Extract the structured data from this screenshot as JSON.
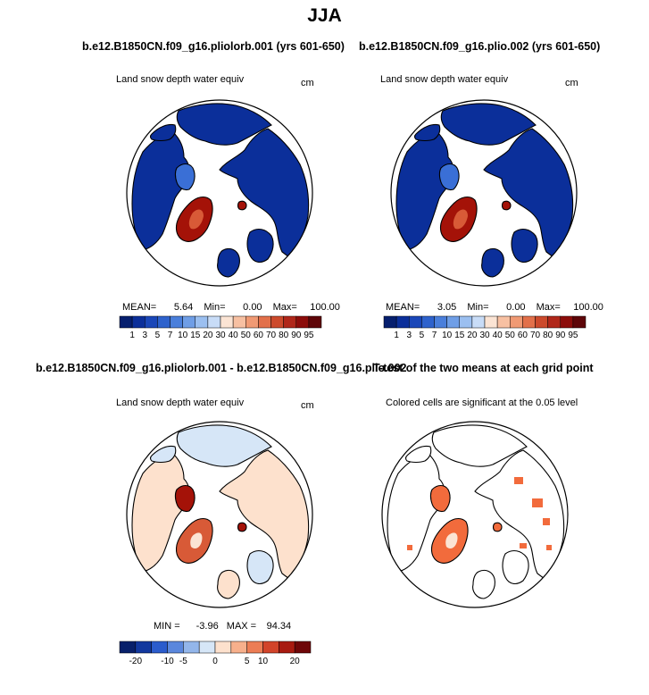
{
  "title": "JJA",
  "colors": {
    "land": "#ffffff",
    "snow_blue": "#0b2f9a",
    "snow_mid": "#3a6fd6",
    "snow_red": "#a41208",
    "snow_orange": "#d85a37",
    "diff_pos_small": "#fde1cd",
    "diff_neg_small": "#d6e6f7",
    "signif": "#f26b3c"
  },
  "panels": {
    "p1": {
      "title": "b.e12.B1850CN.f09_g16.pliolorb.001 (yrs 601-650)",
      "left_label": "Land snow depth water equiv",
      "right_label": "cm",
      "stats": {
        "mean_label": "MEAN=",
        "mean": "5.64",
        "min_label": "Min=",
        "min": "0.00",
        "max_label": "Max=",
        "max": "100.00"
      }
    },
    "p2": {
      "title": "b.e12.B1850CN.f09_g16.plio.002 (yrs 601-650)",
      "left_label": "Land snow depth water equiv",
      "right_label": "cm",
      "stats": {
        "mean_label": "MEAN=",
        "mean": "3.05",
        "min_label": "Min=",
        "min": "0.00",
        "max_label": "Max=",
        "max": "100.00"
      }
    },
    "p3": {
      "title": "b.e12.B1850CN.f09_g16.pliolorb.001 - b.e12.B1850CN.f09_g16.plio.002",
      "left_label": "Land snow depth water equiv",
      "right_label": "cm",
      "stats": {
        "min_label": "MIN =",
        "min": "-3.96",
        "max_label": "MAX =",
        "max": "94.34"
      }
    },
    "p4": {
      "title": "T-test of the two means at each grid point",
      "left_label": "Colored cells are significant at the 0.05 level"
    }
  },
  "chart_data": [
    {
      "type": "heatmap",
      "projection": "polar stereographic (north)",
      "title": "b.e12.B1850CN.f09_g16.pliolorb.001 (yrs 601-650)",
      "variable": "Land snow depth water equiv",
      "units": "cm",
      "colorbar": {
        "labels": [
          "1",
          "3",
          "5",
          "7",
          "10",
          "15",
          "20",
          "30",
          "40",
          "50",
          "60",
          "70",
          "80",
          "90",
          "95"
        ],
        "colors": [
          "#061f6e",
          "#0b2f9a",
          "#1a47b8",
          "#2e62cc",
          "#4a7fdb",
          "#6f9ee6",
          "#9bbff0",
          "#c8dcf7",
          "#fbe4d4",
          "#f7c0a2",
          "#f09a74",
          "#e2704a",
          "#cc4a2c",
          "#b0271a",
          "#8c0c0a",
          "#5e0508"
        ]
      },
      "stats": {
        "mean": 5.64,
        "min": 0.0,
        "max": 100.0
      }
    },
    {
      "type": "heatmap",
      "projection": "polar stereographic (north)",
      "title": "b.e12.B1850CN.f09_g16.plio.002 (yrs 601-650)",
      "variable": "Land snow depth water equiv",
      "units": "cm",
      "colorbar": {
        "labels": [
          "1",
          "3",
          "5",
          "7",
          "10",
          "15",
          "20",
          "30",
          "40",
          "50",
          "60",
          "70",
          "80",
          "90",
          "95"
        ],
        "colors": [
          "#061f6e",
          "#0b2f9a",
          "#1a47b8",
          "#2e62cc",
          "#4a7fdb",
          "#6f9ee6",
          "#9bbff0",
          "#c8dcf7",
          "#fbe4d4",
          "#f7c0a2",
          "#f09a74",
          "#e2704a",
          "#cc4a2c",
          "#b0271a",
          "#8c0c0a",
          "#5e0508"
        ]
      },
      "stats": {
        "mean": 3.05,
        "min": 0.0,
        "max": 100.0
      }
    },
    {
      "type": "heatmap",
      "projection": "polar stereographic (north)",
      "title": "b.e12.B1850CN.f09_g16.pliolorb.001 - b.e12.B1850CN.f09_g16.plio.002",
      "variable": "Land snow depth water equiv",
      "units": "cm",
      "colorbar": {
        "labels": [
          "-20",
          "-10",
          "-5",
          "0",
          "5",
          "10",
          "20"
        ],
        "all_colors": [
          "#08206a",
          "#12389e",
          "#2b5ccc",
          "#5a87dd",
          "#93b6ea",
          "#d6e6f7",
          "#fde1cd",
          "#f7b08c",
          "#ec7d55",
          "#d2442a",
          "#a81a10",
          "#6e0608"
        ]
      },
      "stats": {
        "min": -3.96,
        "max": 94.34
      }
    },
    {
      "type": "heatmap",
      "projection": "polar stereographic (north)",
      "title": "T-test of the two means at each grid point",
      "annotation": "Colored cells are significant at the 0.05 level",
      "significance_level": 0.05
    }
  ]
}
